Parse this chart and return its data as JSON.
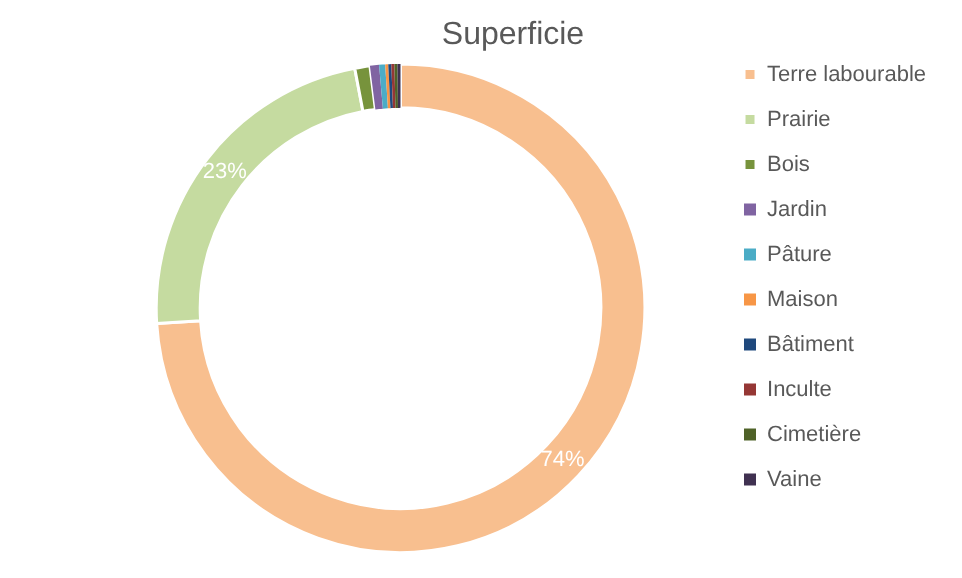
{
  "chart_data": {
    "type": "donut",
    "title": "Superficie",
    "categories": [
      "Terre labourable",
      "Prairie",
      "Bois",
      "Jardin",
      "Pâture",
      "Maison",
      "Bâtiment",
      "Inculte",
      "Cimetière",
      "Vaine"
    ],
    "values": [
      74,
      23,
      1.0,
      0.6,
      0.4,
      0.2,
      0.2,
      0.2,
      0.2,
      0.2
    ],
    "colors": [
      "#f8bf8f",
      "#c5dba0",
      "#77933c",
      "#8064a2",
      "#4bacc6",
      "#f79646",
      "#1f497d",
      "#953735",
      "#4f6228",
      "#403151"
    ],
    "value_labels": [
      "74%",
      "23%",
      null,
      null,
      null,
      null,
      null,
      null,
      null,
      null
    ],
    "legend": "right"
  }
}
